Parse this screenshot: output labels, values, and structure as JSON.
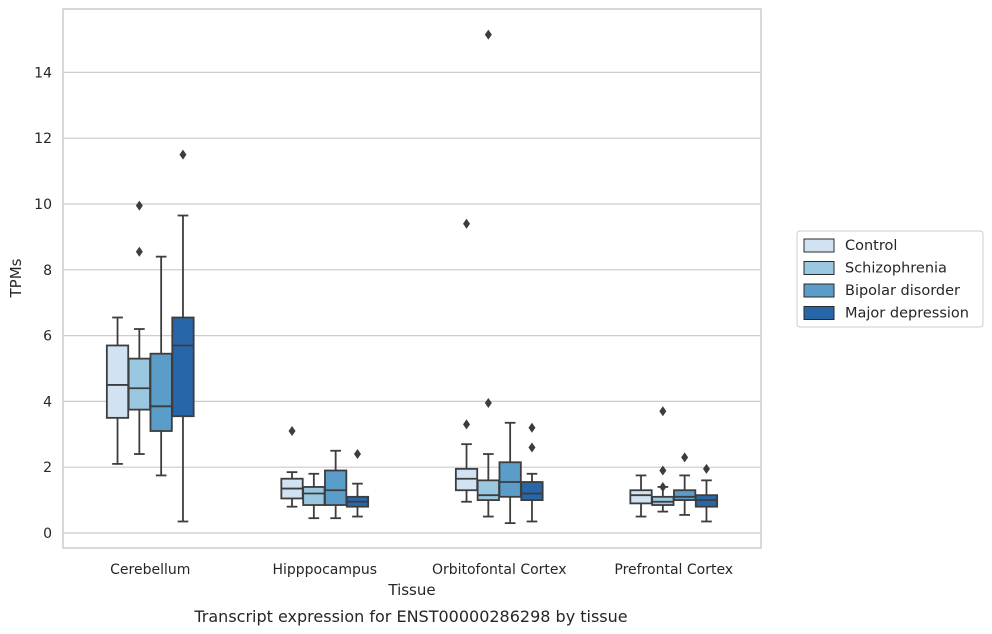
{
  "caption": "Transcript expression for ENST00000286298 by tissue",
  "chart_data": {
    "type": "box",
    "xlabel": "Tissue",
    "ylabel": "TPMs",
    "ylim": [
      -0.4,
      15.9
    ],
    "yticks": [
      0,
      2,
      4,
      6,
      8,
      10,
      12,
      14
    ],
    "grid": true,
    "legend_position": "right",
    "categories": [
      "Cerebellum",
      "Hipppocampus",
      "Orbitofontal Cortex",
      "Prefrontal Cortex"
    ],
    "series": [
      {
        "name": "Control",
        "color": "#d1e2f2",
        "boxes": [
          {
            "whisker_low": 2.1,
            "q1": 3.5,
            "median": 4.5,
            "q3": 5.7,
            "whisker_high": 6.55,
            "outliers": []
          },
          {
            "whisker_low": 0.8,
            "q1": 1.05,
            "median": 1.35,
            "q3": 1.65,
            "whisker_high": 1.85,
            "outliers": [
              3.1
            ]
          },
          {
            "whisker_low": 0.95,
            "q1": 1.3,
            "median": 1.65,
            "q3": 1.95,
            "whisker_high": 2.7,
            "outliers": [
              3.3,
              9.4
            ]
          },
          {
            "whisker_low": 0.5,
            "q1": 0.9,
            "median": 1.15,
            "q3": 1.3,
            "whisker_high": 1.75,
            "outliers": []
          }
        ]
      },
      {
        "name": "Schizophrenia",
        "color": "#9ac8e0",
        "boxes": [
          {
            "whisker_low": 2.4,
            "q1": 3.75,
            "median": 4.4,
            "q3": 5.3,
            "whisker_high": 6.2,
            "outliers": [
              8.55,
              9.95
            ]
          },
          {
            "whisker_low": 0.45,
            "q1": 0.85,
            "median": 1.2,
            "q3": 1.4,
            "whisker_high": 1.8,
            "outliers": []
          },
          {
            "whisker_low": 0.5,
            "q1": 1.0,
            "median": 1.15,
            "q3": 1.6,
            "whisker_high": 2.4,
            "outliers": [
              3.95,
              15.15
            ]
          },
          {
            "whisker_low": 0.65,
            "q1": 0.85,
            "median": 0.95,
            "q3": 1.1,
            "whisker_high": 1.4,
            "outliers": [
              1.4,
              1.9,
              3.7
            ]
          }
        ]
      },
      {
        "name": "Bipolar disorder",
        "color": "#5a9dc8",
        "boxes": [
          {
            "whisker_low": 1.75,
            "q1": 3.1,
            "median": 3.85,
            "q3": 5.45,
            "whisker_high": 8.4,
            "outliers": []
          },
          {
            "whisker_low": 0.45,
            "q1": 0.85,
            "median": 1.3,
            "q3": 1.9,
            "whisker_high": 2.5,
            "outliers": []
          },
          {
            "whisker_low": 0.3,
            "q1": 1.1,
            "median": 1.55,
            "q3": 2.15,
            "whisker_high": 3.35,
            "outliers": []
          },
          {
            "whisker_low": 0.55,
            "q1": 1.0,
            "median": 1.1,
            "q3": 1.3,
            "whisker_high": 1.75,
            "outliers": [
              2.3
            ]
          }
        ]
      },
      {
        "name": "Major depression",
        "color": "#2866aa",
        "boxes": [
          {
            "whisker_low": 0.35,
            "q1": 3.55,
            "median": 5.7,
            "q3": 6.55,
            "whisker_high": 9.65,
            "outliers": [
              11.5
            ]
          },
          {
            "whisker_low": 0.5,
            "q1": 0.8,
            "median": 0.95,
            "q3": 1.1,
            "whisker_high": 1.5,
            "outliers": [
              2.4
            ]
          },
          {
            "whisker_low": 0.35,
            "q1": 1.0,
            "median": 1.2,
            "q3": 1.55,
            "whisker_high": 1.8,
            "outliers": [
              2.6,
              3.2
            ]
          },
          {
            "whisker_low": 0.35,
            "q1": 0.8,
            "median": 1.0,
            "q3": 1.15,
            "whisker_high": 1.6,
            "outliers": [
              1.95
            ]
          }
        ]
      }
    ]
  }
}
